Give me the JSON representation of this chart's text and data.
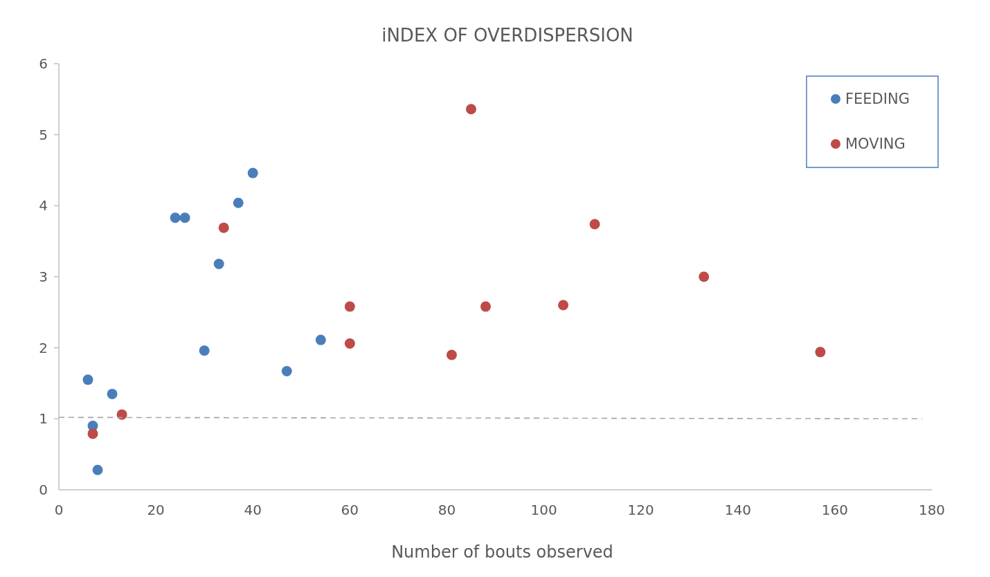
{
  "chart_data": {
    "type": "scatter",
    "title": "iNDEX OF OVERDISPERSION",
    "xlabel": "Number of  bouts observed",
    "xlim": [
      0,
      180
    ],
    "xticks": [
      0,
      20,
      40,
      60,
      80,
      100,
      120,
      140,
      160,
      180
    ],
    "ylim": [
      0,
      6
    ],
    "yticks": [
      0,
      1,
      2,
      3,
      4,
      5,
      6
    ],
    "grid": false,
    "legend": "top right",
    "marker": "circle",
    "series": [
      {
        "name": "FEEDING",
        "color": "#4a7ebb",
        "x": [
          6,
          7,
          8,
          11,
          24,
          26,
          30,
          33,
          37,
          40,
          47,
          54
        ],
        "values": [
          1.55,
          0.9,
          0.28,
          1.35,
          3.83,
          3.83,
          1.96,
          3.18,
          4.04,
          4.46,
          1.67,
          2.11
        ]
      },
      {
        "name": "MOVING",
        "color": "#be4b48",
        "x": [
          7,
          13,
          34,
          60,
          60,
          81,
          85,
          88,
          104,
          110.5,
          133,
          157
        ],
        "values": [
          0.79,
          1.06,
          3.69,
          2.58,
          2.06,
          1.9,
          5.36,
          2.58,
          2.6,
          3.74,
          3.0,
          1.94
        ]
      },
      {
        "type": "line",
        "marker": "none",
        "line_style": "dashed",
        "color": "#a6a6a6",
        "x": [
          0,
          178
        ],
        "values": [
          1.02,
          1.0
        ]
      }
    ]
  }
}
